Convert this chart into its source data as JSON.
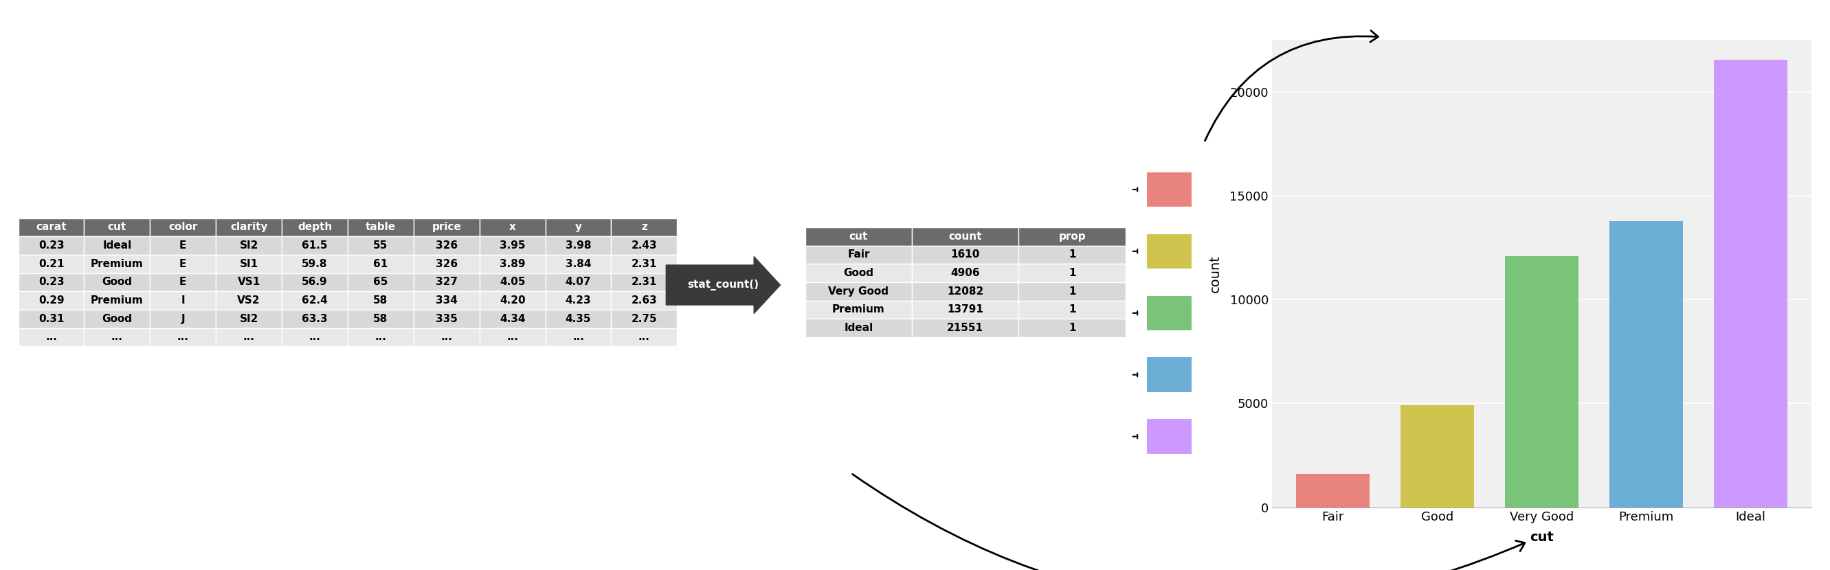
{
  "raw_table": {
    "columns": [
      "carat",
      "cut",
      "color",
      "clarity",
      "depth",
      "table",
      "price",
      "x",
      "y",
      "z"
    ],
    "rows": [
      [
        "0.23",
        "Ideal",
        "E",
        "SI2",
        "61.5",
        "55",
        "326",
        "3.95",
        "3.98",
        "2.43"
      ],
      [
        "0.21",
        "Premium",
        "E",
        "SI1",
        "59.8",
        "61",
        "326",
        "3.89",
        "3.84",
        "2.31"
      ],
      [
        "0.23",
        "Good",
        "E",
        "VS1",
        "56.9",
        "65",
        "327",
        "4.05",
        "4.07",
        "2.31"
      ],
      [
        "0.29",
        "Premium",
        "I",
        "VS2",
        "62.4",
        "58",
        "334",
        "4.20",
        "4.23",
        "2.63"
      ],
      [
        "0.31",
        "Good",
        "J",
        "SI2",
        "63.3",
        "58",
        "335",
        "4.34",
        "4.35",
        "2.75"
      ],
      [
        "...",
        "...",
        "...",
        "...",
        "...",
        "...",
        "...",
        "...",
        "...",
        "..."
      ]
    ],
    "header_color": "#6b6b6b",
    "odd_row_color": "#d8d8d8",
    "even_row_color": "#e8e8e8"
  },
  "count_table": {
    "columns": [
      "cut",
      "count",
      "prop"
    ],
    "rows": [
      [
        "Fair",
        "1610",
        "1"
      ],
      [
        "Good",
        "4906",
        "1"
      ],
      [
        "Very Good",
        "12082",
        "1"
      ],
      [
        "Premium",
        "13791",
        "1"
      ],
      [
        "Ideal",
        "21551",
        "1"
      ]
    ],
    "header_color": "#6b6b6b",
    "odd_row_color": "#d8d8d8",
    "even_row_color": "#e8e8e8"
  },
  "bar_colors": [
    "#e8837e",
    "#cfc44e",
    "#79c479",
    "#6baed6",
    "#cc99ff"
  ],
  "bar_categories": [
    "Fair",
    "Good",
    "Very Good",
    "Premium",
    "Ideal"
  ],
  "bar_counts": [
    1610,
    4906,
    12082,
    13791,
    21551
  ],
  "stat_count_label": "stat_count()",
  "ylabel": "count",
  "xlabel": "cut",
  "ylim": [
    0,
    22500
  ],
  "yticks": [
    0,
    5000,
    10000,
    15000,
    20000
  ],
  "plot_bg_color": "#f0f0f0",
  "grid_color": "#ffffff"
}
